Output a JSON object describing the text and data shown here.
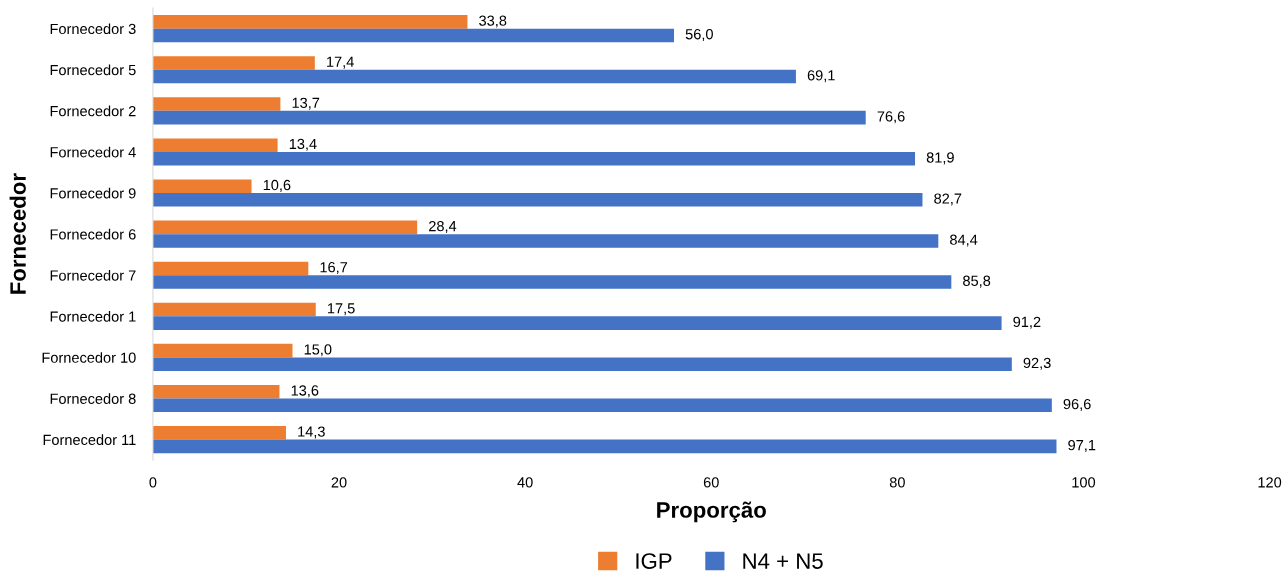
{
  "chart_data": {
    "type": "bar",
    "orientation": "horizontal",
    "xlabel": "Proporção",
    "ylabel": "Fornecedor",
    "categories": [
      "Fornecedor 3",
      "Fornecedor 5",
      "Fornecedor 2",
      "Fornecedor 4",
      "Fornecedor 9",
      "Fornecedor 6",
      "Fornecedor 7",
      "Fornecedor 1",
      "Fornecedor 10",
      "Fornecedor 8",
      "Fornecedor 11"
    ],
    "series": [
      {
        "name": "IGP",
        "color": "#ed7d31",
        "values": [
          33.8,
          17.4,
          13.7,
          13.4,
          10.6,
          28.4,
          16.7,
          17.5,
          15.0,
          13.6,
          14.3
        ],
        "value_labels": [
          "33,8",
          "17,4",
          "13,7",
          "13,4",
          "10,6",
          "28,4",
          "16,7",
          "17,5",
          "15,0",
          "13,6",
          "14,3"
        ]
      },
      {
        "name": "N4 + N5",
        "color": "#4472c4",
        "values": [
          56.0,
          69.1,
          76.6,
          81.9,
          82.7,
          84.4,
          85.8,
          91.2,
          92.3,
          96.6,
          97.1
        ],
        "value_labels": [
          "56,0",
          "69,1",
          "76,6",
          "81,9",
          "82,7",
          "84,4",
          "85,8",
          "91,2",
          "92,3",
          "96,6",
          "97,1"
        ]
      }
    ],
    "xlim": [
      0,
      120
    ],
    "xticks": [
      0,
      20,
      40,
      60,
      80,
      100,
      120
    ],
    "grid": false,
    "legend": "bottom"
  }
}
